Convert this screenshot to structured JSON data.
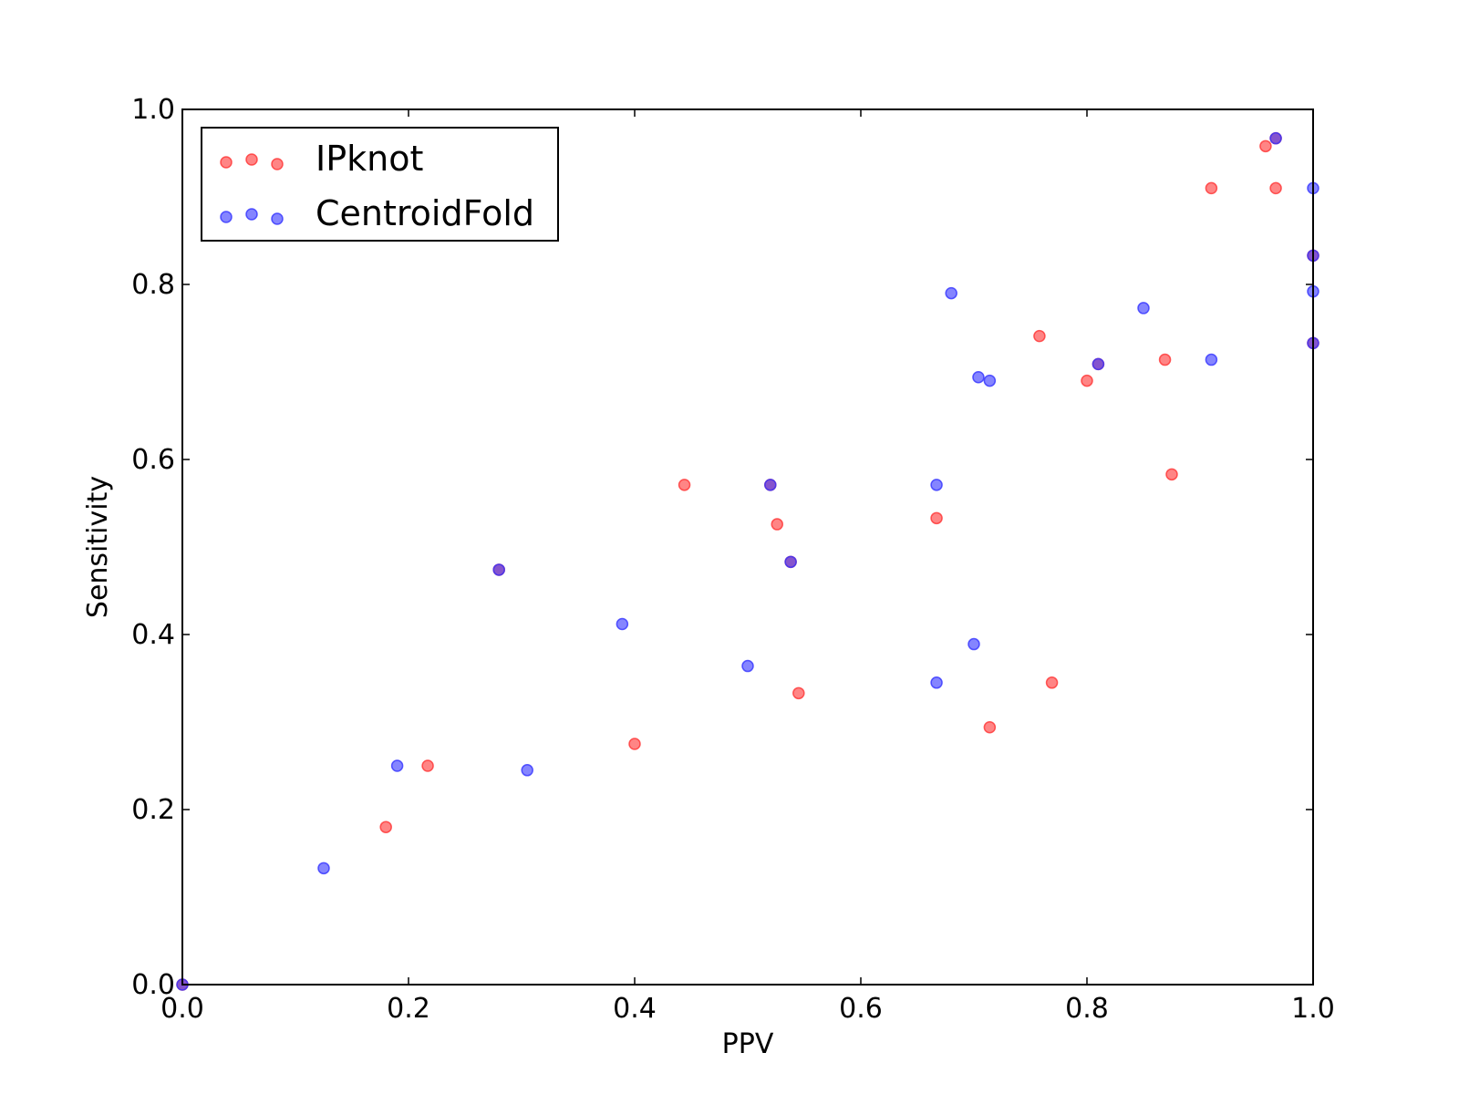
{
  "chart_data": {
    "type": "scatter",
    "title": "",
    "xlabel": "PPV",
    "ylabel": "Sensitivity",
    "xlim": [
      0.0,
      1.0
    ],
    "ylim": [
      0.0,
      1.0
    ],
    "xticks": [
      "0.0",
      "0.2",
      "0.4",
      "0.6",
      "0.8",
      "1.0"
    ],
    "yticks": [
      "0.0",
      "0.2",
      "0.4",
      "0.6",
      "0.8",
      "1.0"
    ],
    "grid": false,
    "legend_position": "upper-left",
    "series": [
      {
        "name": "IPknot",
        "color": "#ff3333",
        "points": [
          [
            0.0,
            0.0
          ],
          [
            0.18,
            0.18
          ],
          [
            0.217,
            0.25
          ],
          [
            0.28,
            0.474
          ],
          [
            0.4,
            0.275
          ],
          [
            0.444,
            0.571
          ],
          [
            0.52,
            0.571
          ],
          [
            0.526,
            0.526
          ],
          [
            0.538,
            0.483
          ],
          [
            0.545,
            0.333
          ],
          [
            0.667,
            0.533
          ],
          [
            0.714,
            0.294
          ],
          [
            0.758,
            0.741
          ],
          [
            0.769,
            0.345
          ],
          [
            0.8,
            0.69
          ],
          [
            0.81,
            0.709
          ],
          [
            0.869,
            0.714
          ],
          [
            0.875,
            0.583
          ],
          [
            0.91,
            0.91
          ],
          [
            0.958,
            0.958
          ],
          [
            0.967,
            0.967
          ],
          [
            0.967,
            0.91
          ],
          [
            1.0,
            0.833
          ],
          [
            1.0,
            0.733
          ]
        ]
      },
      {
        "name": "CentroidFold",
        "color": "#3333ff",
        "points": [
          [
            0.0,
            0.0
          ],
          [
            0.125,
            0.133
          ],
          [
            0.19,
            0.25
          ],
          [
            0.28,
            0.474
          ],
          [
            0.305,
            0.245
          ],
          [
            0.389,
            0.412
          ],
          [
            0.5,
            0.364
          ],
          [
            0.52,
            0.571
          ],
          [
            0.538,
            0.483
          ],
          [
            0.667,
            0.571
          ],
          [
            0.667,
            0.345
          ],
          [
            0.68,
            0.79
          ],
          [
            0.7,
            0.389
          ],
          [
            0.704,
            0.694
          ],
          [
            0.714,
            0.69
          ],
          [
            0.81,
            0.709
          ],
          [
            0.85,
            0.773
          ],
          [
            0.91,
            0.714
          ],
          [
            0.967,
            0.967
          ],
          [
            1.0,
            0.91
          ],
          [
            1.0,
            0.833
          ],
          [
            1.0,
            0.792
          ],
          [
            1.0,
            0.733
          ]
        ]
      }
    ]
  }
}
